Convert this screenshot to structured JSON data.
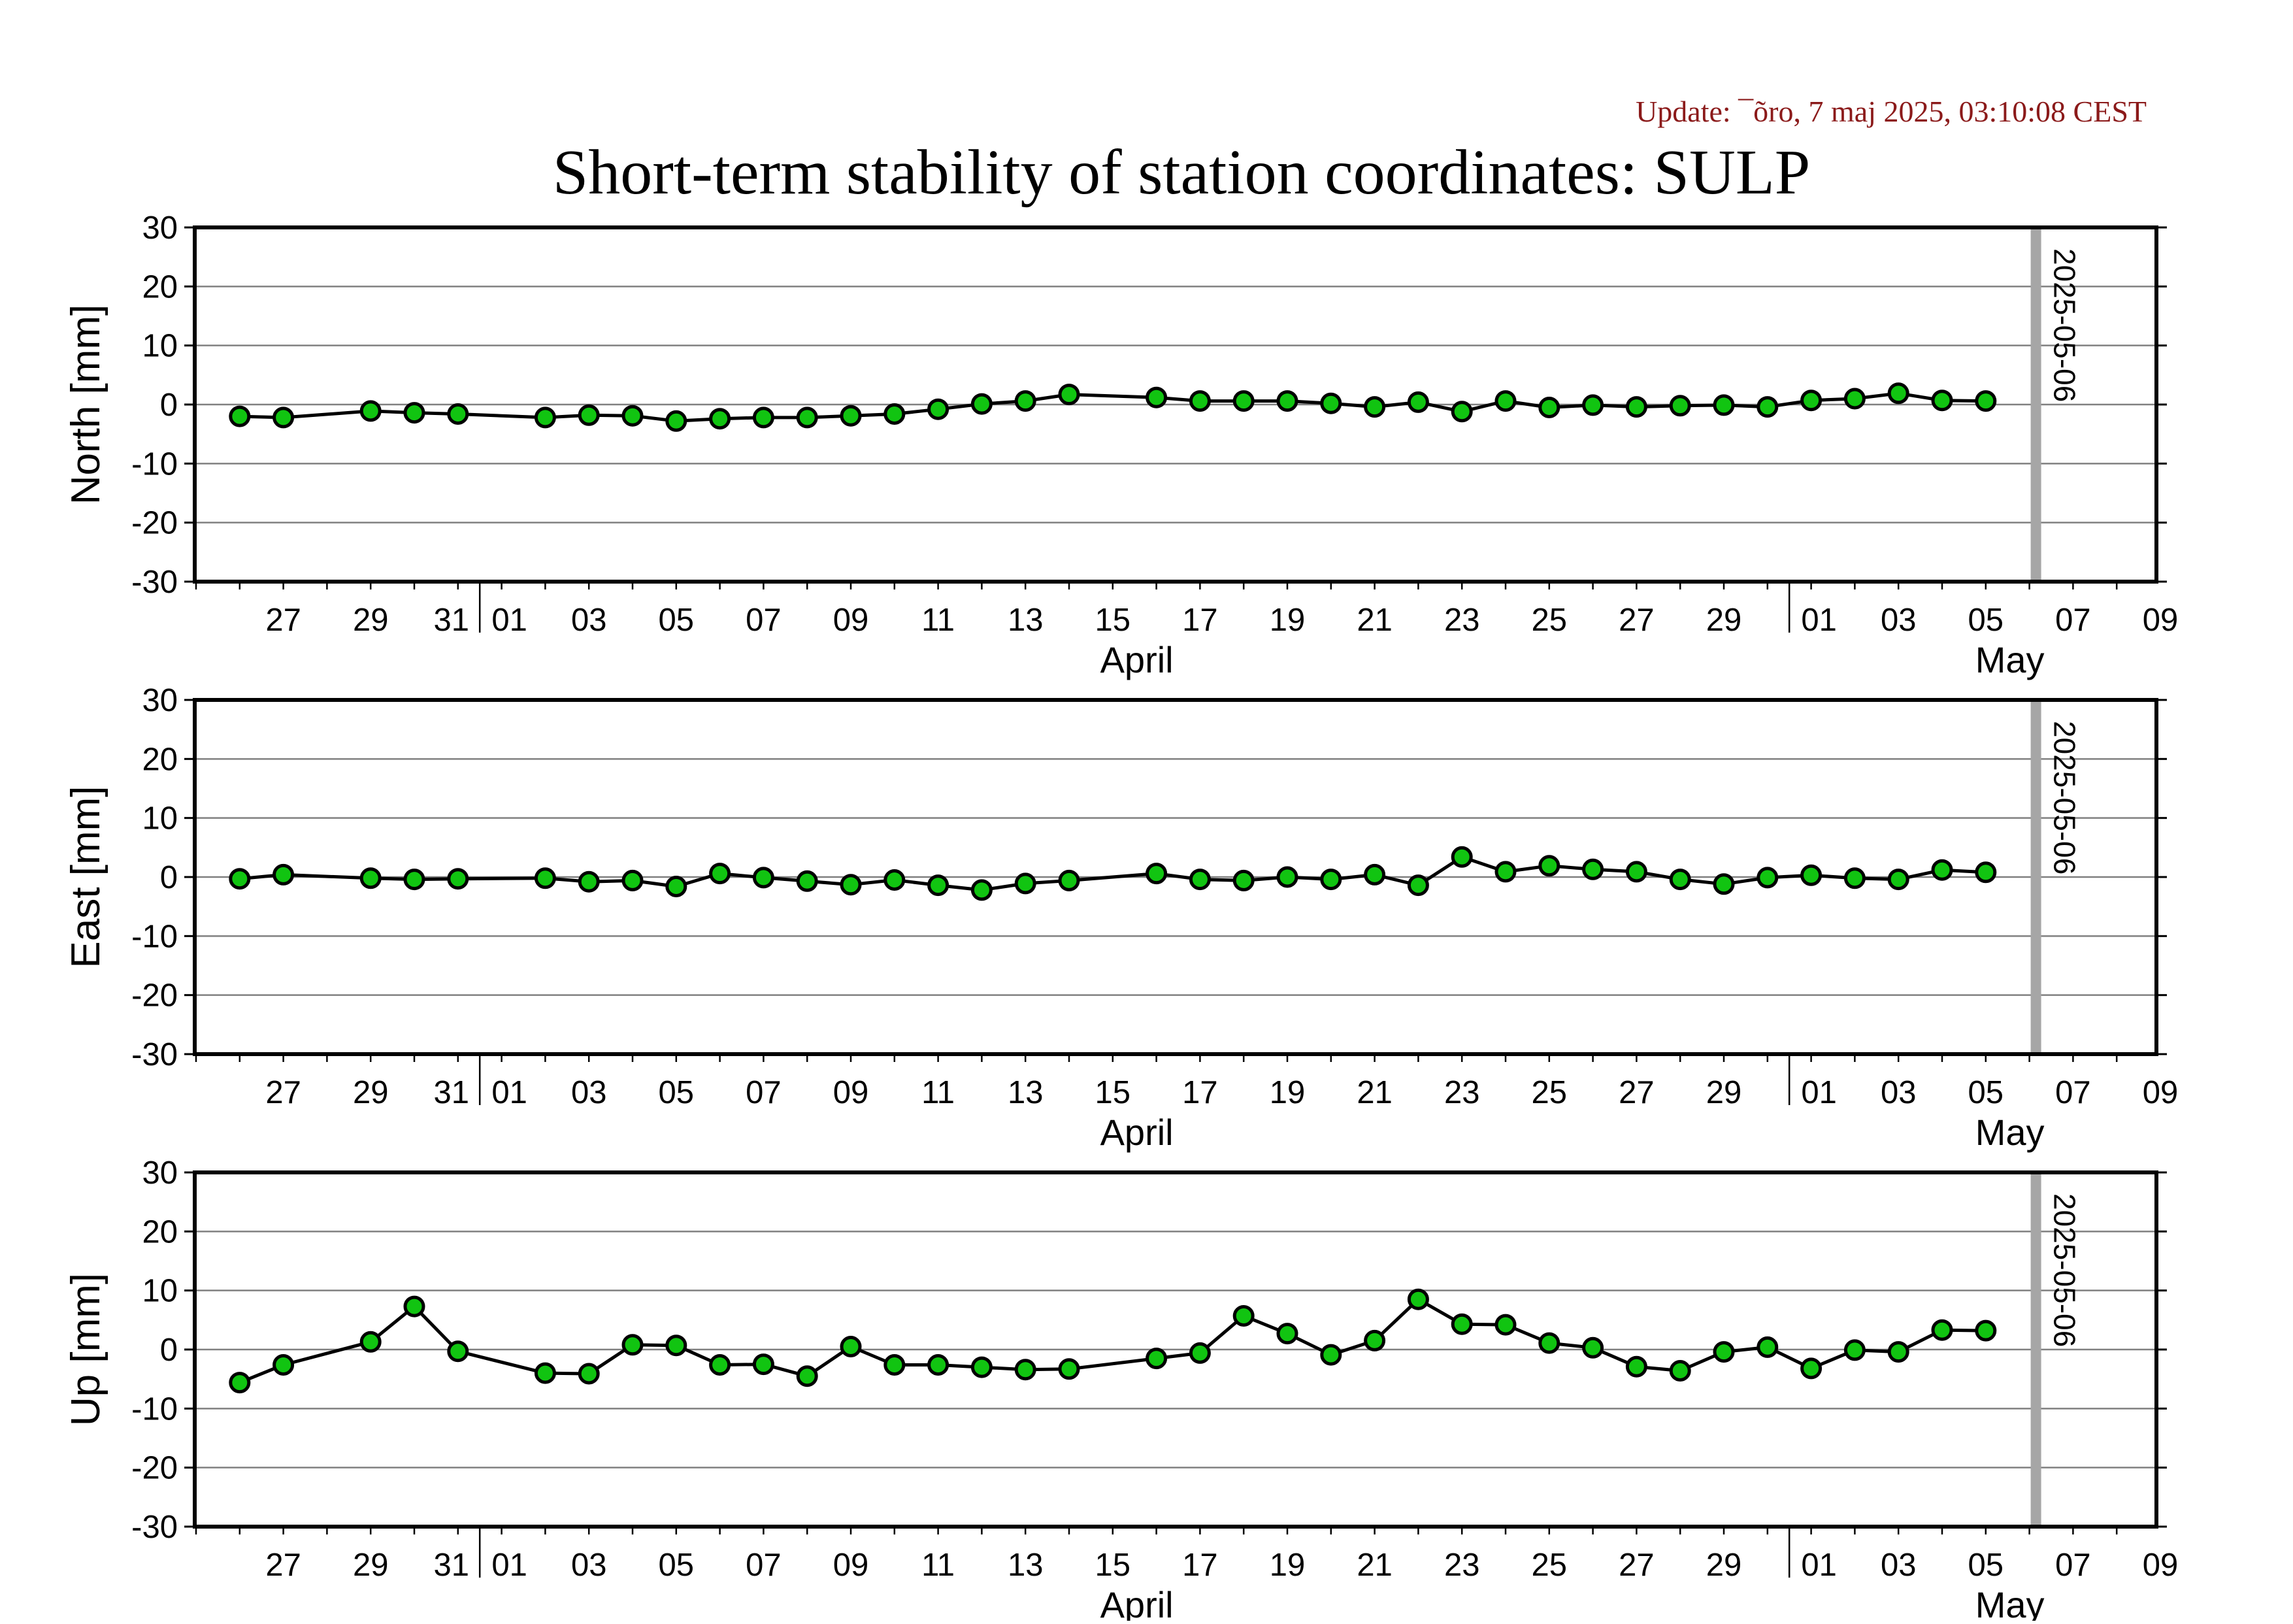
{
  "figure": {
    "title": "Short-term stability of station coordinates: SULP",
    "update": "Update: ¯õro, 7 maj 2025, 03:10:08 CEST"
  },
  "colors": {
    "marker_fill": "#11c411",
    "marker_stroke": "#000000",
    "line": "#000000",
    "grid": "#808080",
    "vline": "#a6a6a6",
    "update_text": "#8b1a1a"
  },
  "chart_data": [
    {
      "type": "line",
      "name": "north",
      "ylabel": "North [mm]",
      "ylim": [
        -30,
        30
      ],
      "yticks": [
        30,
        20,
        10,
        0,
        -10,
        -20,
        -30
      ],
      "xlim": [
        "2025-03-25",
        "2025-05-10"
      ],
      "x_tick_labels": [
        {
          "date": "2025-03-27",
          "label": "27"
        },
        {
          "date": "2025-03-29",
          "label": "29"
        },
        {
          "date": "2025-03-31",
          "label": "31"
        },
        {
          "date": "2025-04-01",
          "label": "01"
        },
        {
          "date": "2025-04-03",
          "label": "03"
        },
        {
          "date": "2025-04-05",
          "label": "05"
        },
        {
          "date": "2025-04-07",
          "label": "07"
        },
        {
          "date": "2025-04-09",
          "label": "09"
        },
        {
          "date": "2025-04-11",
          "label": "11"
        },
        {
          "date": "2025-04-13",
          "label": "13"
        },
        {
          "date": "2025-04-15",
          "label": "15"
        },
        {
          "date": "2025-04-17",
          "label": "17"
        },
        {
          "date": "2025-04-19",
          "label": "19"
        },
        {
          "date": "2025-04-21",
          "label": "21"
        },
        {
          "date": "2025-04-23",
          "label": "23"
        },
        {
          "date": "2025-04-25",
          "label": "25"
        },
        {
          "date": "2025-04-27",
          "label": "27"
        },
        {
          "date": "2025-04-29",
          "label": "29"
        },
        {
          "date": "2025-05-01",
          "label": "01"
        },
        {
          "date": "2025-05-03",
          "label": "03"
        },
        {
          "date": "2025-05-05",
          "label": "05"
        },
        {
          "date": "2025-05-07",
          "label": "07"
        },
        {
          "date": "2025-05-09",
          "label": "09"
        }
      ],
      "month_labels": [
        {
          "date": "2025-04-16",
          "label": "April"
        },
        {
          "date": "2025-05-06",
          "label": "May"
        }
      ],
      "month_boundaries": [
        "2025-04-01",
        "2025-05-01"
      ],
      "marker_line": {
        "date": "2025-05-06",
        "label": "2025-05-06"
      },
      "grid": true,
      "points": [
        [
          "2025-03-26",
          -2.0
        ],
        [
          "2025-03-27",
          -2.2
        ],
        [
          "2025-03-29",
          -1.1
        ],
        [
          "2025-03-30",
          -1.4
        ],
        [
          "2025-03-31",
          -1.6
        ],
        [
          "2025-04-02",
          -2.2
        ],
        [
          "2025-04-03",
          -1.8
        ],
        [
          "2025-04-04",
          -1.9
        ],
        [
          "2025-04-05",
          -2.8
        ],
        [
          "2025-04-06",
          -2.4
        ],
        [
          "2025-04-07",
          -2.2
        ],
        [
          "2025-04-08",
          -2.2
        ],
        [
          "2025-04-09",
          -1.9
        ],
        [
          "2025-04-10",
          -1.6
        ],
        [
          "2025-04-11",
          -0.8
        ],
        [
          "2025-04-12",
          0.1
        ],
        [
          "2025-04-13",
          0.6
        ],
        [
          "2025-04-14",
          1.7
        ],
        [
          "2025-04-16",
          1.2
        ],
        [
          "2025-04-17",
          0.6
        ],
        [
          "2025-04-18",
          0.6
        ],
        [
          "2025-04-19",
          0.6
        ],
        [
          "2025-04-20",
          0.2
        ],
        [
          "2025-04-21",
          -0.4
        ],
        [
          "2025-04-22",
          0.4
        ],
        [
          "2025-04-23",
          -1.2
        ],
        [
          "2025-04-24",
          0.6
        ],
        [
          "2025-04-25",
          -0.5
        ],
        [
          "2025-04-26",
          -0.1
        ],
        [
          "2025-04-27",
          -0.4
        ],
        [
          "2025-04-28",
          -0.2
        ],
        [
          "2025-04-29",
          -0.1
        ],
        [
          "2025-04-30",
          -0.4
        ],
        [
          "2025-05-01",
          0.7
        ],
        [
          "2025-05-02",
          1.0
        ],
        [
          "2025-05-03",
          1.9
        ],
        [
          "2025-05-04",
          0.7
        ],
        [
          "2025-05-05",
          0.6
        ]
      ]
    },
    {
      "type": "line",
      "name": "east",
      "ylabel": "East [mm]",
      "ylim": [
        -30,
        30
      ],
      "yticks": [
        30,
        20,
        10,
        0,
        -10,
        -20,
        -30
      ],
      "xlim": [
        "2025-03-25",
        "2025-05-10"
      ],
      "x_tick_labels": [
        {
          "date": "2025-03-27",
          "label": "27"
        },
        {
          "date": "2025-03-29",
          "label": "29"
        },
        {
          "date": "2025-03-31",
          "label": "31"
        },
        {
          "date": "2025-04-01",
          "label": "01"
        },
        {
          "date": "2025-04-03",
          "label": "03"
        },
        {
          "date": "2025-04-05",
          "label": "05"
        },
        {
          "date": "2025-04-07",
          "label": "07"
        },
        {
          "date": "2025-04-09",
          "label": "09"
        },
        {
          "date": "2025-04-11",
          "label": "11"
        },
        {
          "date": "2025-04-13",
          "label": "13"
        },
        {
          "date": "2025-04-15",
          "label": "15"
        },
        {
          "date": "2025-04-17",
          "label": "17"
        },
        {
          "date": "2025-04-19",
          "label": "19"
        },
        {
          "date": "2025-04-21",
          "label": "21"
        },
        {
          "date": "2025-04-23",
          "label": "23"
        },
        {
          "date": "2025-04-25",
          "label": "25"
        },
        {
          "date": "2025-04-27",
          "label": "27"
        },
        {
          "date": "2025-04-29",
          "label": "29"
        },
        {
          "date": "2025-05-01",
          "label": "01"
        },
        {
          "date": "2025-05-03",
          "label": "03"
        },
        {
          "date": "2025-05-05",
          "label": "05"
        },
        {
          "date": "2025-05-07",
          "label": "07"
        },
        {
          "date": "2025-05-09",
          "label": "09"
        }
      ],
      "month_labels": [
        {
          "date": "2025-04-16",
          "label": "April"
        },
        {
          "date": "2025-05-06",
          "label": "May"
        }
      ],
      "month_boundaries": [
        "2025-04-01",
        "2025-05-01"
      ],
      "marker_line": {
        "date": "2025-05-06",
        "label": "2025-05-06"
      },
      "grid": true,
      "points": [
        [
          "2025-03-26",
          -0.3
        ],
        [
          "2025-03-27",
          0.4
        ],
        [
          "2025-03-29",
          -0.2
        ],
        [
          "2025-03-30",
          -0.4
        ],
        [
          "2025-03-31",
          -0.3
        ],
        [
          "2025-04-02",
          -0.2
        ],
        [
          "2025-04-03",
          -0.8
        ],
        [
          "2025-04-04",
          -0.6
        ],
        [
          "2025-04-05",
          -1.6
        ],
        [
          "2025-04-06",
          0.6
        ],
        [
          "2025-04-07",
          -0.1
        ],
        [
          "2025-04-08",
          -0.7
        ],
        [
          "2025-04-09",
          -1.3
        ],
        [
          "2025-04-10",
          -0.5
        ],
        [
          "2025-04-11",
          -1.4
        ],
        [
          "2025-04-12",
          -2.2
        ],
        [
          "2025-04-13",
          -1.1
        ],
        [
          "2025-04-14",
          -0.6
        ],
        [
          "2025-04-16",
          0.6
        ],
        [
          "2025-04-17",
          -0.4
        ],
        [
          "2025-04-18",
          -0.6
        ],
        [
          "2025-04-19",
          0.0
        ],
        [
          "2025-04-20",
          -0.4
        ],
        [
          "2025-04-21",
          0.4
        ],
        [
          "2025-04-22",
          -1.4
        ],
        [
          "2025-04-23",
          3.4
        ],
        [
          "2025-04-24",
          0.9
        ],
        [
          "2025-04-25",
          1.9
        ],
        [
          "2025-04-26",
          1.3
        ],
        [
          "2025-04-27",
          0.9
        ],
        [
          "2025-04-28",
          -0.4
        ],
        [
          "2025-04-29",
          -1.2
        ],
        [
          "2025-04-30",
          -0.1
        ],
        [
          "2025-05-01",
          0.3
        ],
        [
          "2025-05-02",
          -0.2
        ],
        [
          "2025-05-03",
          -0.4
        ],
        [
          "2025-05-04",
          1.2
        ],
        [
          "2025-05-05",
          0.8
        ]
      ]
    },
    {
      "type": "line",
      "name": "up",
      "ylabel": "Up [mm]",
      "ylim": [
        -30,
        30
      ],
      "yticks": [
        30,
        20,
        10,
        0,
        -10,
        -20,
        -30
      ],
      "xlim": [
        "2025-03-25",
        "2025-05-10"
      ],
      "x_tick_labels": [
        {
          "date": "2025-03-27",
          "label": "27"
        },
        {
          "date": "2025-03-29",
          "label": "29"
        },
        {
          "date": "2025-03-31",
          "label": "31"
        },
        {
          "date": "2025-04-01",
          "label": "01"
        },
        {
          "date": "2025-04-03",
          "label": "03"
        },
        {
          "date": "2025-04-05",
          "label": "05"
        },
        {
          "date": "2025-04-07",
          "label": "07"
        },
        {
          "date": "2025-04-09",
          "label": "09"
        },
        {
          "date": "2025-04-11",
          "label": "11"
        },
        {
          "date": "2025-04-13",
          "label": "13"
        },
        {
          "date": "2025-04-15",
          "label": "15"
        },
        {
          "date": "2025-04-17",
          "label": "17"
        },
        {
          "date": "2025-04-19",
          "label": "19"
        },
        {
          "date": "2025-04-21",
          "label": "21"
        },
        {
          "date": "2025-04-23",
          "label": "23"
        },
        {
          "date": "2025-04-25",
          "label": "25"
        },
        {
          "date": "2025-04-27",
          "label": "27"
        },
        {
          "date": "2025-04-29",
          "label": "29"
        },
        {
          "date": "2025-05-01",
          "label": "01"
        },
        {
          "date": "2025-05-03",
          "label": "03"
        },
        {
          "date": "2025-05-05",
          "label": "05"
        },
        {
          "date": "2025-05-07",
          "label": "07"
        },
        {
          "date": "2025-05-09",
          "label": "09"
        }
      ],
      "month_labels": [
        {
          "date": "2025-04-16",
          "label": "April"
        },
        {
          "date": "2025-05-06",
          "label": "May"
        }
      ],
      "month_boundaries": [
        "2025-04-01",
        "2025-05-01"
      ],
      "marker_line": {
        "date": "2025-05-06",
        "label": "2025-05-06"
      },
      "grid": true,
      "points": [
        [
          "2025-03-26",
          -5.6
        ],
        [
          "2025-03-27",
          -2.6
        ],
        [
          "2025-03-29",
          1.3
        ],
        [
          "2025-03-30",
          7.3
        ],
        [
          "2025-03-31",
          -0.3
        ],
        [
          "2025-04-02",
          -4.0
        ],
        [
          "2025-04-03",
          -4.1
        ],
        [
          "2025-04-04",
          0.8
        ],
        [
          "2025-04-05",
          0.7
        ],
        [
          "2025-04-06",
          -2.6
        ],
        [
          "2025-04-07",
          -2.5
        ],
        [
          "2025-04-08",
          -4.5
        ],
        [
          "2025-04-09",
          0.5
        ],
        [
          "2025-04-10",
          -2.6
        ],
        [
          "2025-04-11",
          -2.6
        ],
        [
          "2025-04-12",
          -3.0
        ],
        [
          "2025-04-13",
          -3.4
        ],
        [
          "2025-04-14",
          -3.3
        ],
        [
          "2025-04-16",
          -1.5
        ],
        [
          "2025-04-17",
          -0.6
        ],
        [
          "2025-04-18",
          5.7
        ],
        [
          "2025-04-19",
          2.7
        ],
        [
          "2025-04-20",
          -0.9
        ],
        [
          "2025-04-21",
          1.5
        ],
        [
          "2025-04-22",
          8.5
        ],
        [
          "2025-04-23",
          4.3
        ],
        [
          "2025-04-24",
          4.2
        ],
        [
          "2025-04-25",
          1.1
        ],
        [
          "2025-04-26",
          0.3
        ],
        [
          "2025-04-27",
          -2.9
        ],
        [
          "2025-04-28",
          -3.6
        ],
        [
          "2025-04-29",
          -0.4
        ],
        [
          "2025-04-30",
          0.4
        ],
        [
          "2025-05-01",
          -3.2
        ],
        [
          "2025-05-02",
          -0.1
        ],
        [
          "2025-05-03",
          -0.4
        ],
        [
          "2025-05-04",
          3.3
        ],
        [
          "2025-05-05",
          3.2
        ]
      ]
    }
  ]
}
